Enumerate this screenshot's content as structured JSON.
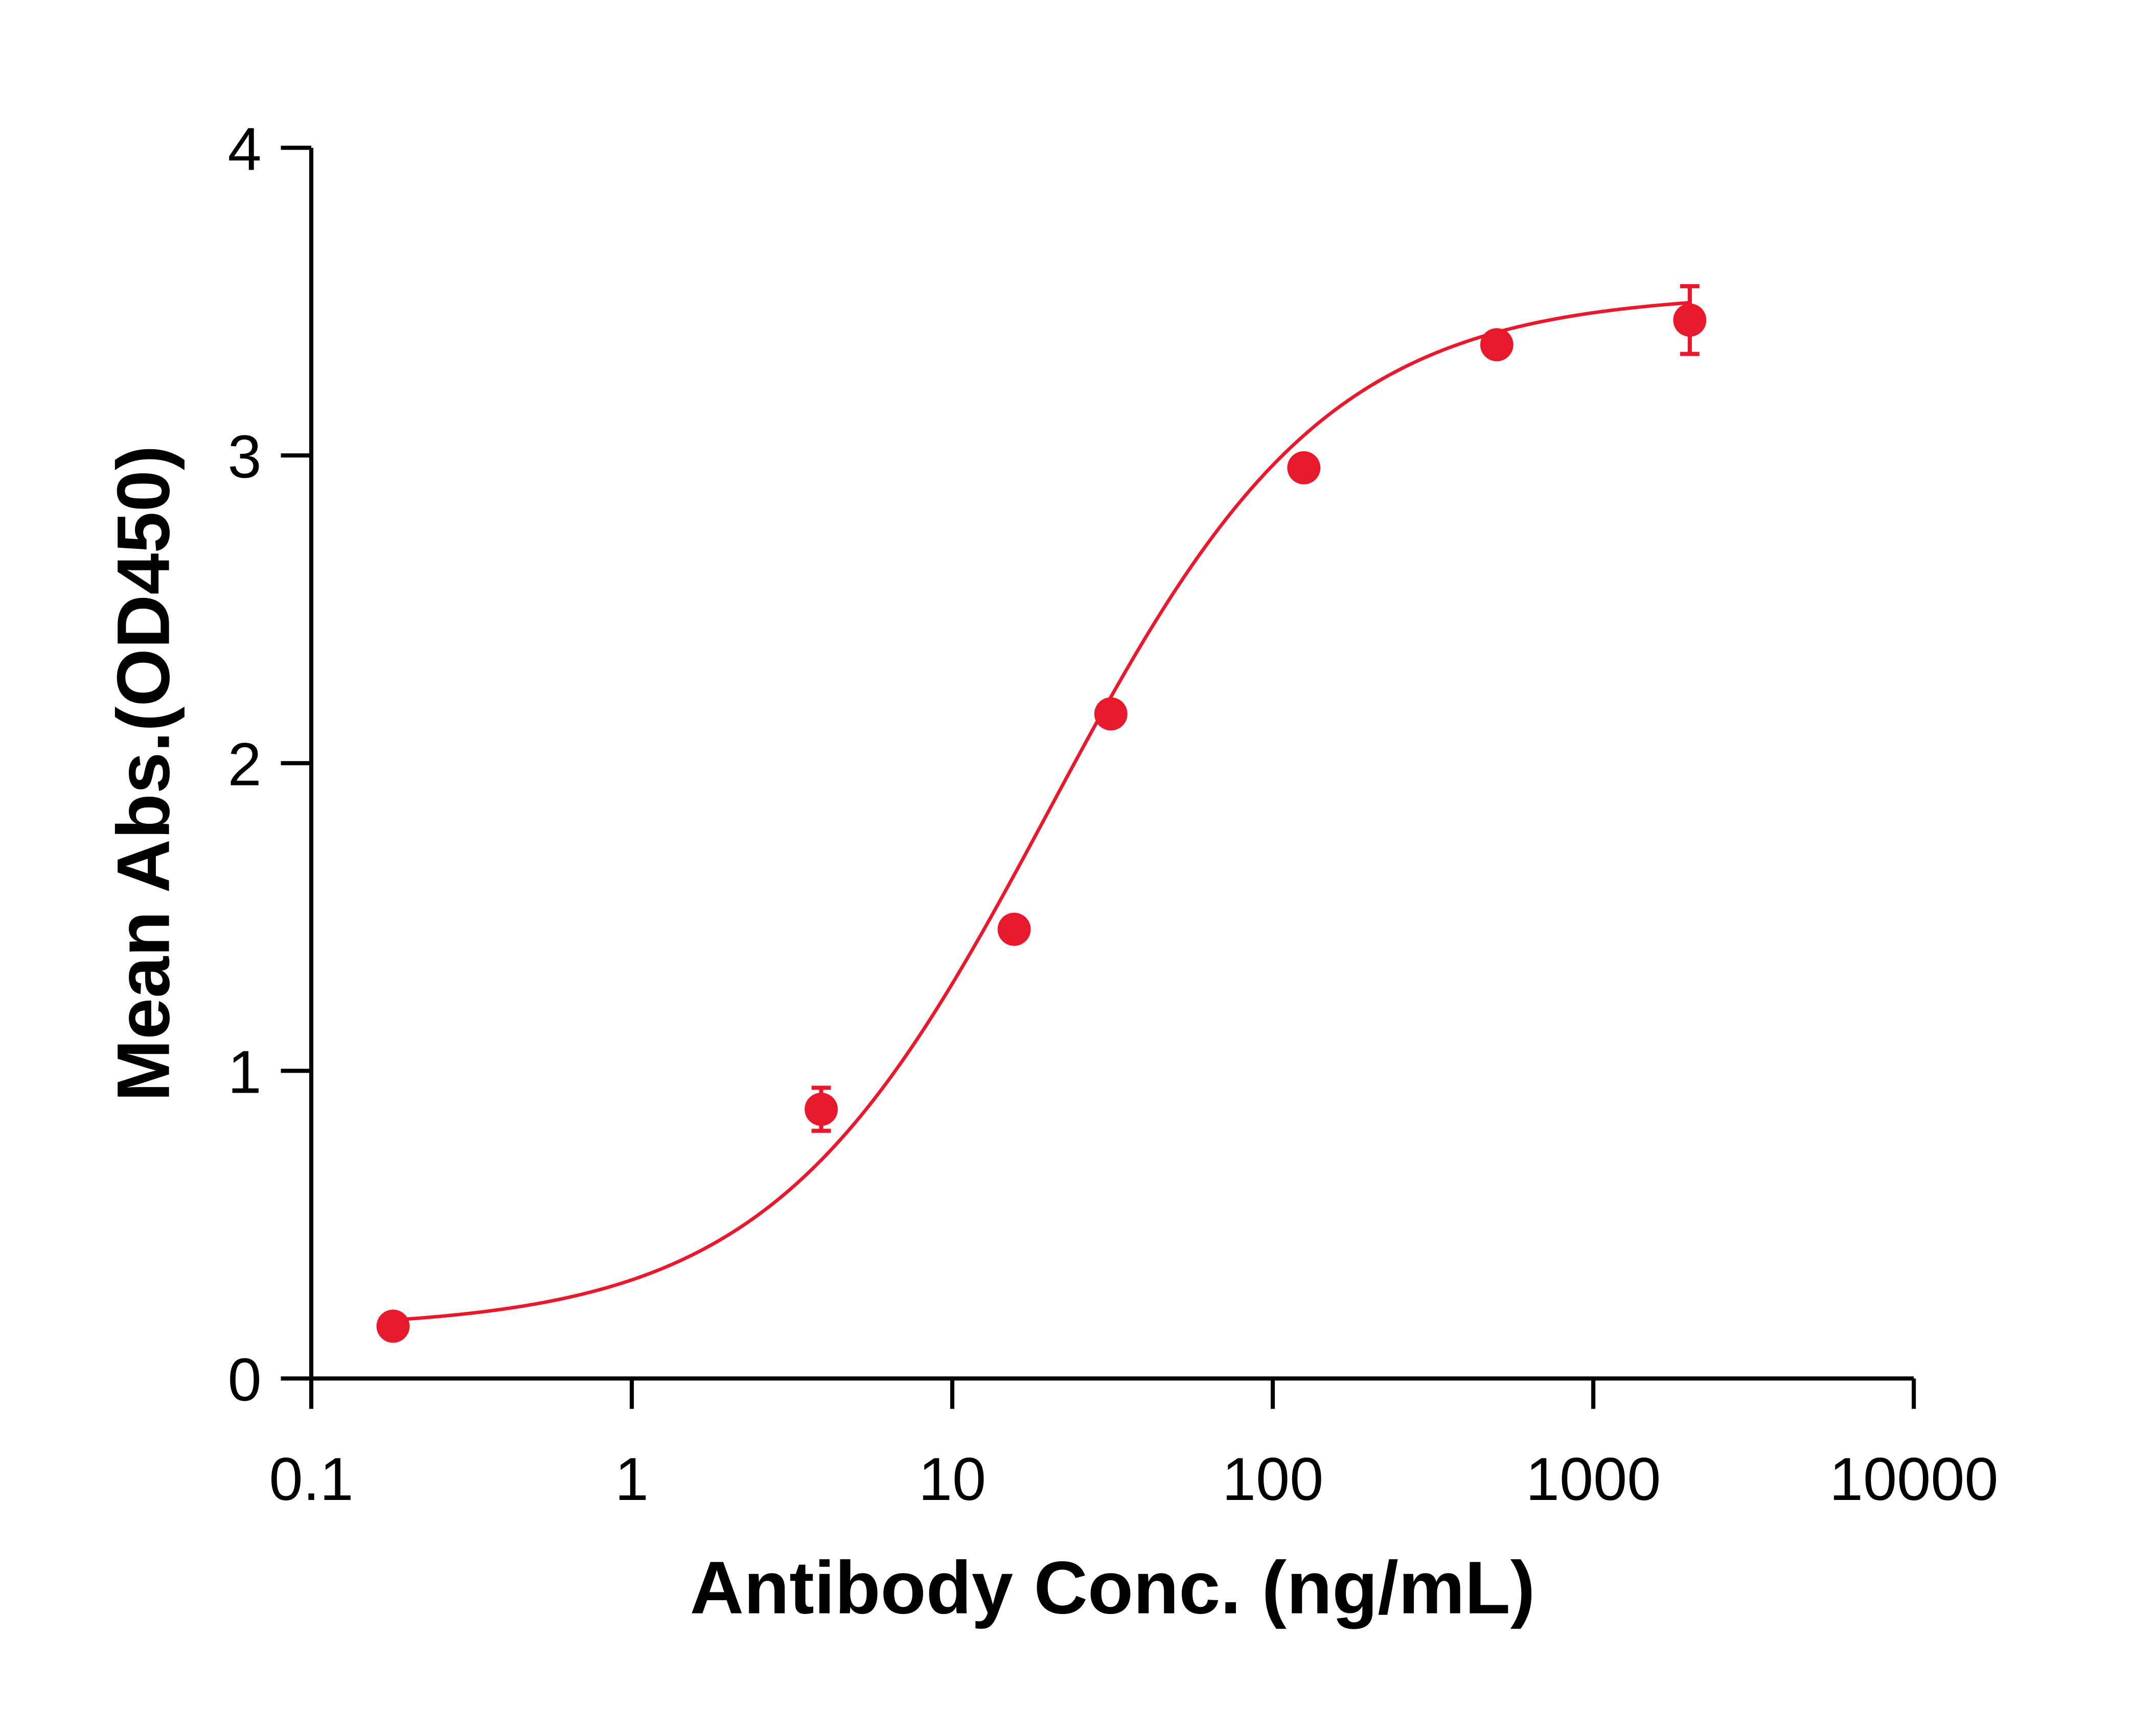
{
  "chart_data": {
    "type": "scatter",
    "xlabel": "Antibody Conc. (ng/mL)",
    "ylabel": "Mean Abs.(OD450)",
    "xscale": "log",
    "xlim": [
      0.1,
      10000
    ],
    "ylim": [
      0,
      4
    ],
    "xticks": [
      "0.1",
      "1",
      "10",
      "100",
      "1000",
      "10000"
    ],
    "yticks": [
      "0",
      "1",
      "2",
      "3",
      "4"
    ],
    "grid": false,
    "color": "#e8192c",
    "points": [
      {
        "x": 0.18,
        "y": 0.17,
        "err": 0
      },
      {
        "x": 3.9,
        "y": 0.875,
        "err": 0.07
      },
      {
        "x": 15.6,
        "y": 1.46,
        "err": 0
      },
      {
        "x": 31.25,
        "y": 2.16,
        "err": 0
      },
      {
        "x": 125,
        "y": 2.96,
        "err": 0
      },
      {
        "x": 500,
        "y": 3.36,
        "err": 0
      },
      {
        "x": 2000,
        "y": 3.44,
        "err": 0.11
      }
    ],
    "fit": {
      "model": "4PL",
      "bottom": 0.16,
      "top": 3.53,
      "ec50": 20,
      "hill": 1.0
    }
  }
}
